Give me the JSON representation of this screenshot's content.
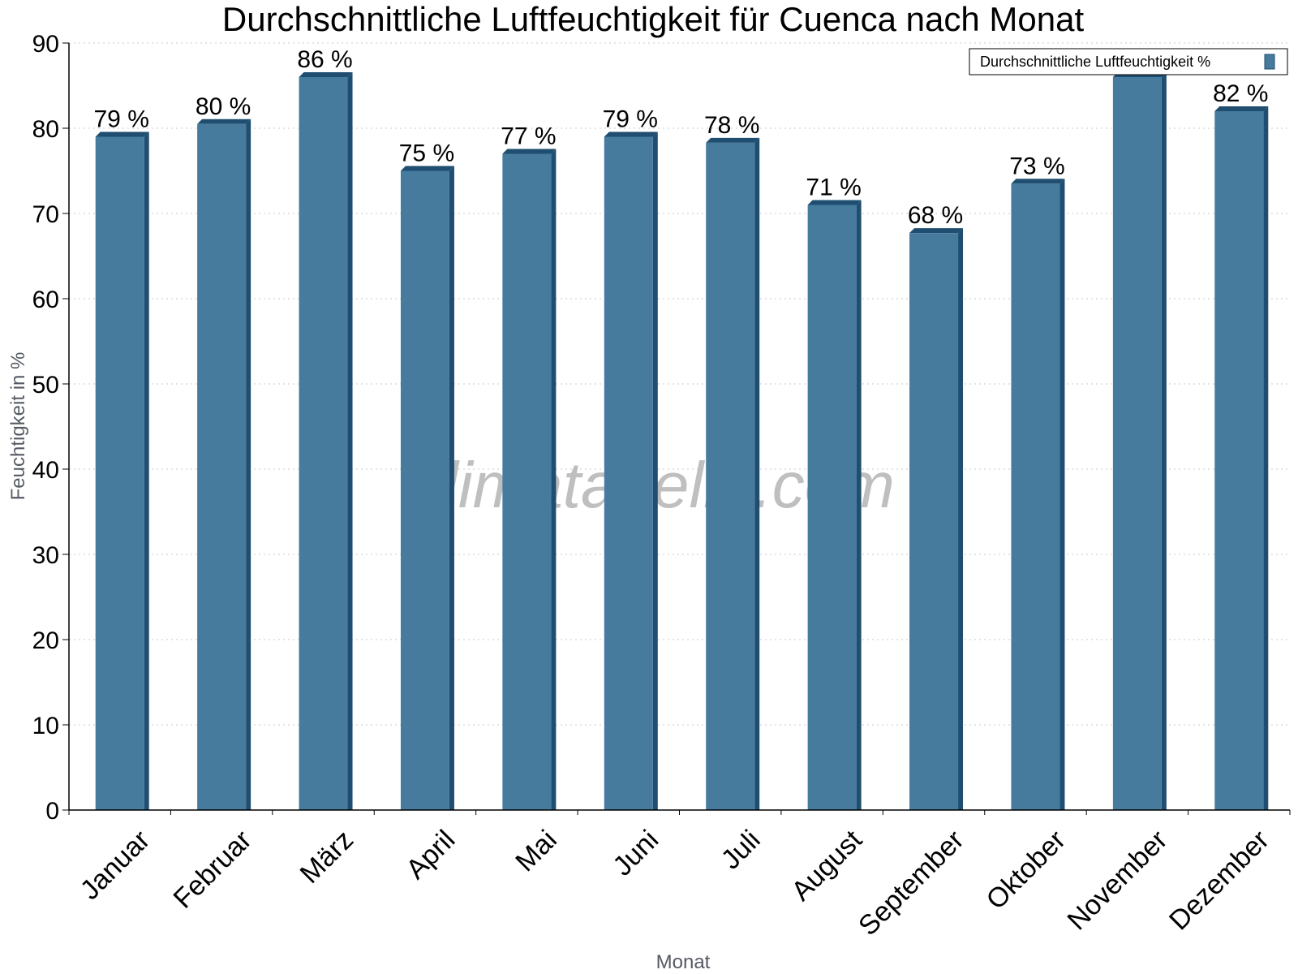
{
  "chart_data": {
    "type": "bar",
    "title": "Durchschnittliche Luftfeuchtigkeit für Cuenca nach Monat",
    "xlabel": "Monat",
    "ylabel": "Feuchtigkeit in %",
    "ylim": [
      0,
      90
    ],
    "yticks": [
      0,
      10,
      20,
      30,
      40,
      50,
      60,
      70,
      80,
      90
    ],
    "grid": true,
    "legend_position": "top-right",
    "categories": [
      "Januar",
      "Februar",
      "März",
      "April",
      "Mai",
      "Juni",
      "Juli",
      "August",
      "September",
      "Oktober",
      "November",
      "Dezember"
    ],
    "series": [
      {
        "name": "Durchschnittliche Luftfeuchtigkeit %",
        "values": [
          79,
          80.5,
          86,
          75,
          77,
          79,
          78.3,
          71,
          67.7,
          73.5,
          86,
          82
        ],
        "data_labels": [
          "79 %",
          "80 %",
          "86 %",
          "75 %",
          "77 %",
          "79 %",
          "78 %",
          "71 %",
          "68 %",
          "73 %",
          "",
          "82 %"
        ],
        "color": "#467b9e",
        "side_color": "#1f4e70"
      }
    ],
    "watermark": "klimatabelle.com"
  }
}
